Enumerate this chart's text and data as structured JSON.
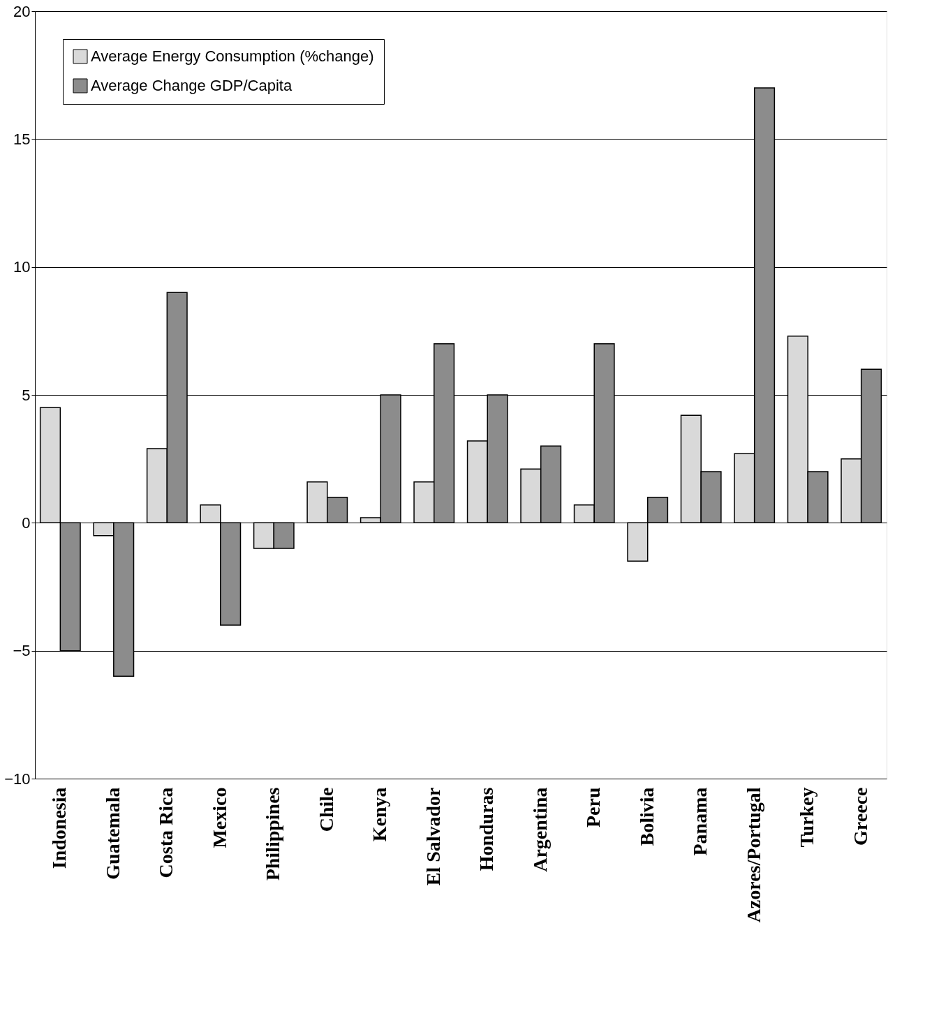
{
  "chart_data": {
    "type": "bar",
    "categories": [
      "Indonesia",
      "Guatemala",
      "Costa Rica",
      "Mexico",
      "Philippines",
      "Chile",
      "Kenya",
      "El Salvador",
      "Honduras",
      "Argentina",
      "Peru",
      "Bolivia",
      "Panama",
      "Azores/Portugal",
      "Turkey",
      "Greece"
    ],
    "series": [
      {
        "name": "Average Energy Consumption (%change)",
        "color": "#d9d9d9",
        "values": [
          4.5,
          -0.5,
          2.9,
          0.7,
          -1.0,
          1.6,
          0.2,
          1.6,
          3.2,
          2.1,
          0.7,
          -1.5,
          4.2,
          2.7,
          7.3,
          2.5
        ]
      },
      {
        "name": "Average Change GDP/Capita",
        "color": "#8c8c8c",
        "values": [
          -5,
          -6,
          9,
          -4,
          -1,
          1,
          5,
          7,
          5,
          3,
          7,
          1,
          2,
          17,
          2,
          6
        ]
      }
    ],
    "ylim": [
      -10,
      20
    ],
    "yticks": [
      -10,
      -5,
      0,
      5,
      10,
      15,
      20
    ],
    "grid": "y",
    "legend": "top left"
  }
}
